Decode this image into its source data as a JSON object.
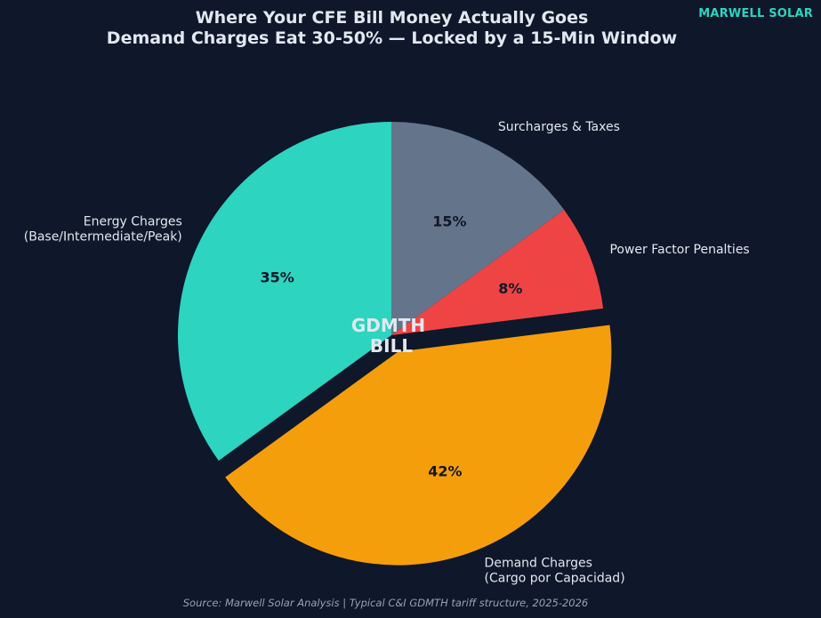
{
  "brand": "MARWELL SOLAR",
  "title_line1": "Where Your CFE Bill Money Actually Goes",
  "title_line2": "Demand Charges Eat 30-50% — Locked by a 15-Min Window",
  "source": "Source: Marwell Solar Analysis | Typical C&I GDMTH tariff structure, 2025-2026",
  "center_label_line1": "GDMTH",
  "center_label_line2": "BILL",
  "chart_data": {
    "type": "pie",
    "start_angle_deg": 90,
    "direction": "counterclockwise",
    "slices": [
      {
        "label_lines": [
          "Energy Charges",
          "(Base/Intermediate/Peak)"
        ],
        "value": 35,
        "pct_label": "35%",
        "color": "#2dd4bf",
        "exploded": false
      },
      {
        "label_lines": [
          "Demand Charges",
          "(Cargo por Capacidad)"
        ],
        "value": 42,
        "pct_label": "42%",
        "color": "#f59e0b",
        "exploded": true
      },
      {
        "label_lines": [
          "Power Factor Penalties"
        ],
        "value": 8,
        "pct_label": "8%",
        "color": "#ef4444",
        "exploded": false
      },
      {
        "label_lines": [
          "Surcharges & Taxes"
        ],
        "value": 15,
        "pct_label": "15%",
        "color": "#64748b",
        "exploded": false
      }
    ]
  }
}
